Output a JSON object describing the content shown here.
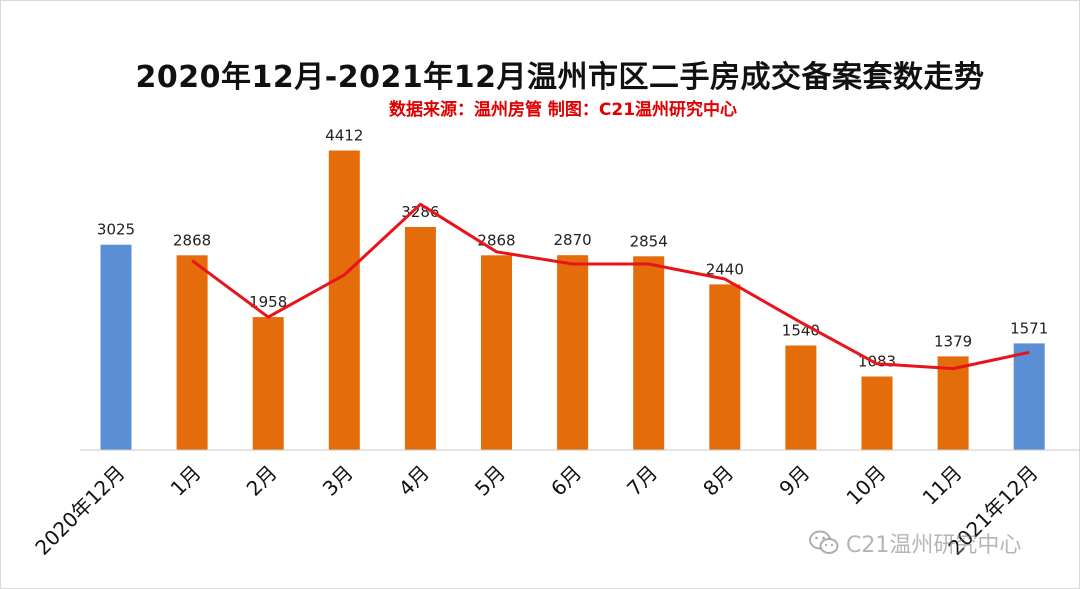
{
  "chart_data": {
    "type": "bar",
    "title": "2020年12月-2021年12月温州市区二手房成交备案套数走势",
    "subtitle": "数据来源：温州房管  制图：C21温州研究中心",
    "categories": [
      "2020年12月",
      "1月",
      "2月",
      "3月",
      "4月",
      "5月",
      "6月",
      "7月",
      "8月",
      "9月",
      "10月",
      "11月",
      "2021年12月"
    ],
    "series": [
      {
        "type": "bar",
        "values": [
          3025,
          2868,
          1958,
          4412,
          3286,
          2868,
          2870,
          2854,
          2440,
          1540,
          1083,
          1379,
          1571
        ],
        "colors": [
          "#5a8fd6",
          "#e46c0a",
          "#e46c0a",
          "#e46c0a",
          "#e46c0a",
          "#e46c0a",
          "#e46c0a",
          "#e46c0a",
          "#e46c0a",
          "#e46c0a",
          "#e46c0a",
          "#e46c0a",
          "#5a8fd6"
        ]
      },
      {
        "type": "line",
        "color": "#e8141b",
        "x": [
          "1月",
          "2月",
          "3月",
          "4月",
          "5月",
          "6月",
          "7月",
          "8月",
          "9月",
          "10月",
          "11月",
          "2021年12月"
        ],
        "values": [
          2790,
          1958,
          2580,
          3620,
          2920,
          2740,
          2740,
          2520,
          1880,
          1270,
          1200,
          1440
        ]
      }
    ],
    "ylim": [
      0,
      4700
    ],
    "grid": false,
    "legend": "none"
  },
  "watermark": "C21温州研究中心",
  "watermark_icon": "wechat-icon"
}
